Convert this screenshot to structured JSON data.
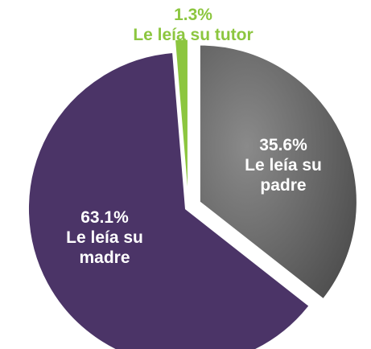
{
  "chart_data": {
    "type": "pie",
    "categories": [
      "Le leía su padre",
      "Le leía su madre",
      "Le leía su tutor"
    ],
    "values": [
      35.6,
      63.1,
      1.3
    ],
    "value_labels": [
      "35.6%",
      "63.1%",
      "1.3%"
    ],
    "colors": [
      "#6a6a6a",
      "#4b3467",
      "#8cc63f"
    ]
  }
}
